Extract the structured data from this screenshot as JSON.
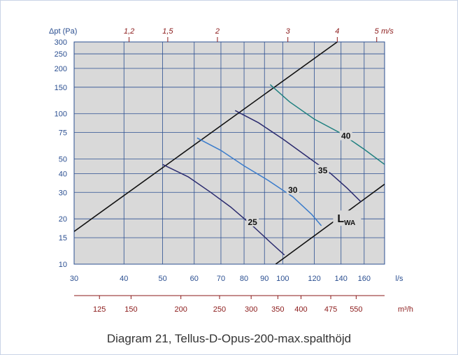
{
  "caption": "Diagram 21, Tellus-D-Opus-200-max.spalthöjd",
  "chart_data": {
    "type": "line",
    "y_axis": {
      "label": "Δpt (Pa)",
      "scale": "log",
      "range": [
        10,
        300
      ],
      "ticks": [
        10,
        15,
        20,
        30,
        40,
        50,
        75,
        100,
        150,
        200,
        250,
        300
      ],
      "color": "#2b4f91"
    },
    "x_axis": {
      "unit_label": "l/s",
      "scale": "log",
      "range": [
        30,
        180
      ],
      "ticks": [
        30,
        40,
        50,
        60,
        70,
        80,
        90,
        100,
        120,
        140,
        160
      ],
      "color": "#2b4f91"
    },
    "x2_axis_bottom": {
      "unit_label": "m³/h",
      "ticks": [
        125,
        150,
        200,
        250,
        300,
        350,
        400,
        475,
        550
      ],
      "color": "#8b1a1a"
    },
    "x3_axis_top": {
      "unit_label": "m/s",
      "ticks": [
        {
          "text": "1,2",
          "value": 1.2,
          "ls": 41.2
        },
        {
          "text": "1,5",
          "value": 1.5,
          "ls": 51.5
        },
        {
          "text": "2",
          "value": 2,
          "ls": 68.6
        },
        {
          "text": "3",
          "value": 3,
          "ls": 103
        },
        {
          "text": "4",
          "value": 4,
          "ls": 137
        },
        {
          "text": "5",
          "value": 5,
          "ls": 172
        }
      ],
      "color": "#8b1a1a"
    },
    "grid": true,
    "plot_background": "#d9d9d9",
    "grid_color": "#2b4f91",
    "boundary_lines": [
      {
        "name": "upper",
        "points": [
          [
            30,
            16.5
          ],
          [
            137,
            300
          ]
        ],
        "color": "#111111"
      },
      {
        "name": "lower",
        "points": [
          [
            96,
            10
          ],
          [
            180,
            34
          ]
        ],
        "color": "#111111"
      }
    ],
    "boundary_label": {
      "main": "L",
      "sub": "WA",
      "x": 137,
      "y": 20
    },
    "series": [
      {
        "name": "25",
        "color": "#2a2a6e",
        "points": [
          [
            50,
            46
          ],
          [
            58,
            38
          ],
          [
            66,
            30
          ],
          [
            74,
            24
          ],
          [
            84,
            18
          ],
          [
            93,
            14
          ],
          [
            101,
            11.5
          ]
        ],
        "label_pos": [
          84,
          19
        ]
      },
      {
        "name": "30",
        "color": "#3b7ccb",
        "points": [
          [
            61,
            69
          ],
          [
            70,
            57
          ],
          [
            80,
            45
          ],
          [
            92,
            36
          ],
          [
            106,
            28
          ],
          [
            118,
            21.5
          ],
          [
            125,
            18
          ]
        ],
        "label_pos": [
          106,
          31
        ]
      },
      {
        "name": "35",
        "color": "#2a2a6e",
        "points": [
          [
            76,
            105
          ],
          [
            87,
            87
          ],
          [
            100,
            68
          ],
          [
            115,
            52
          ],
          [
            132,
            40
          ],
          [
            145,
            32
          ],
          [
            157,
            26
          ]
        ],
        "label_pos": [
          126,
          42
        ]
      },
      {
        "name": "40",
        "color": "#1f8080",
        "points": [
          [
            93,
            156
          ],
          [
            104,
            120
          ],
          [
            120,
            92
          ],
          [
            140,
            74
          ],
          [
            160,
            58
          ],
          [
            180,
            46
          ]
        ],
        "label_pos": [
          144,
          71
        ]
      }
    ]
  }
}
